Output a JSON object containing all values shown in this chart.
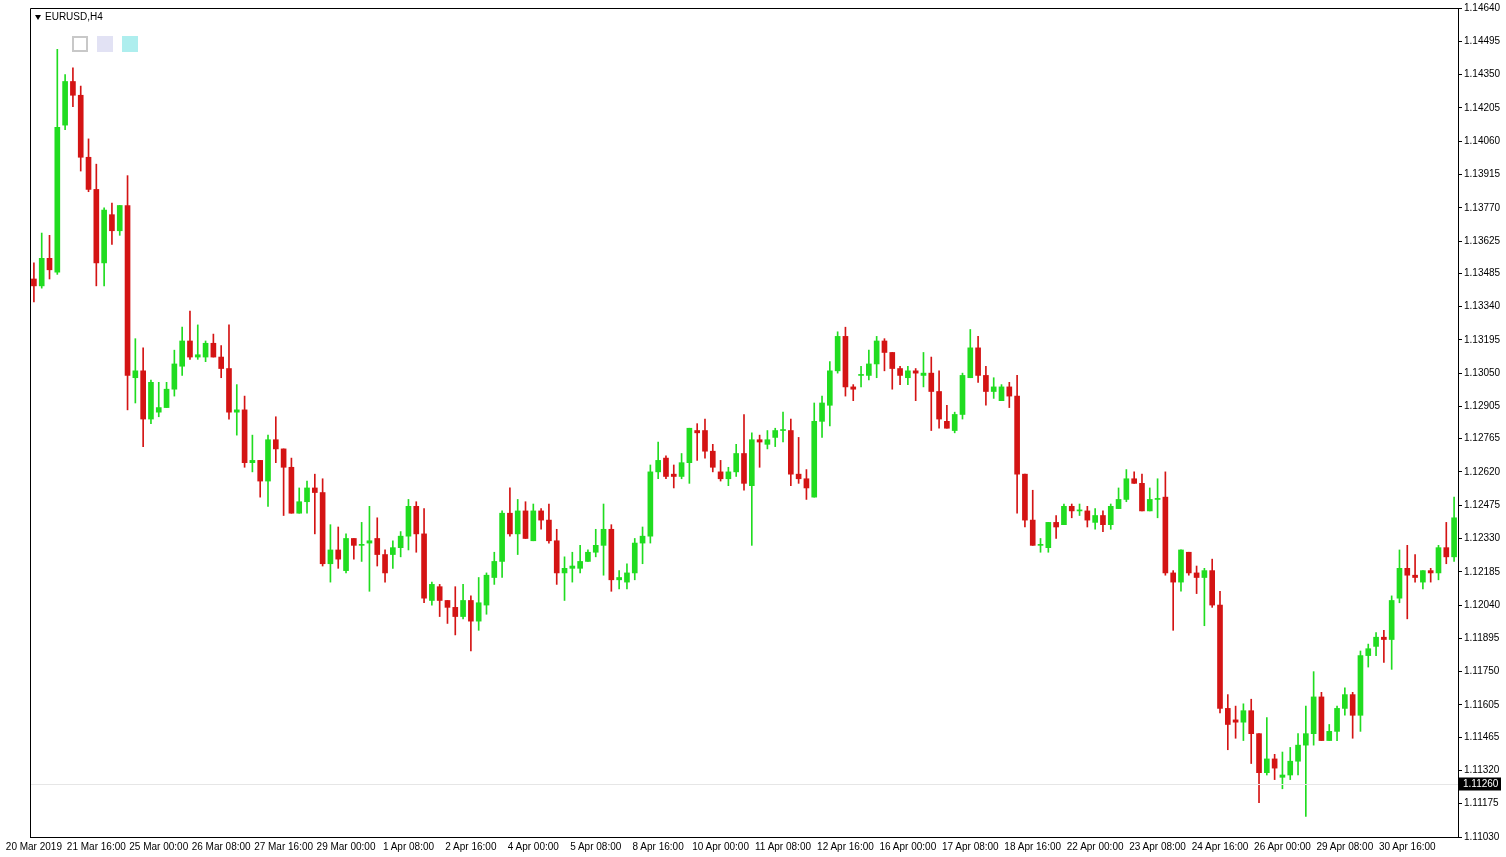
{
  "chart_data": {
    "type": "candlestick",
    "title": "EURUSD,H4",
    "categories": [
      "20 Mar 2019",
      null,
      null,
      null,
      null,
      null,
      null,
      null,
      "21 Mar 16:00",
      null,
      null,
      null,
      null,
      null,
      null,
      null,
      "25 Mar 00:00",
      null,
      null,
      null,
      null,
      null,
      null,
      null,
      "26 Mar 08:00",
      null,
      null,
      null,
      null,
      null,
      null,
      null,
      "27 Mar 16:00",
      null,
      null,
      null,
      null,
      null,
      null,
      null,
      "29 Mar 00:00",
      null,
      null,
      null,
      null,
      null,
      null,
      null,
      "1 Apr 08:00",
      null,
      null,
      null,
      null,
      null,
      null,
      null,
      "2 Apr 16:00",
      null,
      null,
      null,
      null,
      null,
      null,
      null,
      "4 Apr 00:00",
      null,
      null,
      null,
      null,
      null,
      null,
      null,
      "5 Apr 08:00",
      null,
      null,
      null,
      null,
      null,
      null,
      null,
      "8 Apr 16:00",
      null,
      null,
      null,
      null,
      null,
      null,
      null,
      "10 Apr 00:00",
      null,
      null,
      null,
      null,
      null,
      null,
      null,
      "11 Apr 08:00",
      null,
      null,
      null,
      null,
      null,
      null,
      null,
      "12 Apr 16:00",
      null,
      null,
      null,
      null,
      null,
      null,
      null,
      "16 Apr 00:00",
      null,
      null,
      null,
      null,
      null,
      null,
      null,
      "17 Apr 08:00",
      null,
      null,
      null,
      null,
      null,
      null,
      null,
      "18 Apr 16:00",
      null,
      null,
      null,
      null,
      null,
      null,
      null,
      "22 Apr 00:00",
      null,
      null,
      null,
      null,
      null,
      null,
      null,
      "23 Apr 08:00",
      null,
      null,
      null,
      null,
      null,
      null,
      null,
      "24 Apr 16:00",
      null,
      null,
      null,
      null,
      null,
      null,
      null,
      "26 Apr 00:00",
      null,
      null,
      null,
      null,
      null,
      null,
      null,
      "29 Apr 08:00",
      null,
      null,
      null,
      null,
      null,
      null,
      null,
      "30 Apr 16:00",
      null,
      null,
      null,
      null,
      null,
      null
    ],
    "ohlc": [
      [
        1.1346,
        1.1353,
        1.1336,
        1.1343
      ],
      [
        1.1343,
        1.1366,
        1.1342,
        1.1355
      ],
      [
        1.1355,
        1.1365,
        1.1346,
        1.135
      ],
      [
        1.1349,
        1.1446,
        1.1348,
        1.1412
      ],
      [
        1.1413,
        1.1435,
        1.1411,
        1.1432
      ],
      [
        1.1432,
        1.1438,
        1.1421,
        1.1426
      ],
      [
        1.1426,
        1.143,
        1.1393,
        1.1399
      ],
      [
        1.1399,
        1.1407,
        1.1384,
        1.1385
      ],
      [
        1.1385,
        1.1396,
        1.1343,
        1.1353
      ],
      [
        1.1353,
        1.1377,
        1.1343,
        1.1376
      ],
      [
        1.1374,
        1.1379,
        1.1361,
        1.1367
      ],
      [
        1.1367,
        1.1378,
        1.1365,
        1.1378
      ],
      [
        1.1378,
        1.1391,
        1.1289,
        1.1304
      ],
      [
        1.1303,
        1.132,
        1.1292,
        1.1306
      ],
      [
        1.1306,
        1.1316,
        1.1273,
        1.1285
      ],
      [
        1.1285,
        1.1302,
        1.1283,
        1.1301
      ],
      [
        1.1288,
        1.1301,
        1.1286,
        1.129
      ],
      [
        1.129,
        1.1301,
        1.129,
        1.1298
      ],
      [
        1.1298,
        1.1315,
        1.1295,
        1.1309
      ],
      [
        1.1308,
        1.1325,
        1.1304,
        1.1319
      ],
      [
        1.1319,
        1.1332,
        1.1311,
        1.1312
      ],
      [
        1.1312,
        1.1326,
        1.1311,
        1.1313
      ],
      [
        1.1312,
        1.1319,
        1.131,
        1.1318
      ],
      [
        1.1318,
        1.1322,
        1.1312,
        1.1312
      ],
      [
        1.1312,
        1.1317,
        1.1303,
        1.1307
      ],
      [
        1.1307,
        1.1326,
        1.1285,
        1.1288
      ],
      [
        1.1288,
        1.13,
        1.1278,
        1.1289
      ],
      [
        1.1289,
        1.1295,
        1.1264,
        1.1266
      ],
      [
        1.1266,
        1.1278,
        1.1262,
        1.1267
      ],
      [
        1.1267,
        1.1267,
        1.1251,
        1.1258
      ],
      [
        1.1258,
        1.1278,
        1.1247,
        1.1276
      ],
      [
        1.1276,
        1.1286,
        1.1266,
        1.1272
      ],
      [
        1.1272,
        1.1272,
        1.1243,
        1.1264
      ],
      [
        1.1264,
        1.1268,
        1.1244,
        1.1244
      ],
      [
        1.1244,
        1.1255,
        1.1244,
        1.1249
      ],
      [
        1.1249,
        1.1258,
        1.1244,
        1.1255
      ],
      [
        1.1255,
        1.1261,
        1.1235,
        1.1253
      ],
      [
        1.1253,
        1.1259,
        1.1221,
        1.1222
      ],
      [
        1.1222,
        1.1239,
        1.1214,
        1.1228
      ],
      [
        1.1228,
        1.1238,
        1.122,
        1.1224
      ],
      [
        1.1219,
        1.1235,
        1.1218,
        1.1233
      ],
      [
        1.1233,
        1.1233,
        1.1224,
        1.123
      ],
      [
        1.123,
        1.124,
        1.1223,
        1.123
      ],
      [
        1.1231,
        1.1247,
        1.121,
        1.1232
      ],
      [
        1.1233,
        1.1242,
        1.1221,
        1.1226
      ],
      [
        1.1226,
        1.1228,
        1.1214,
        1.1218
      ],
      [
        1.1226,
        1.1232,
        1.122,
        1.1229
      ],
      [
        1.1229,
        1.1236,
        1.1225,
        1.1234
      ],
      [
        1.1234,
        1.125,
        1.1228,
        1.1247
      ],
      [
        1.1247,
        1.1249,
        1.1227,
        1.1235
      ],
      [
        1.1235,
        1.1246,
        1.1205,
        1.1207
      ],
      [
        1.1206,
        1.1214,
        1.1204,
        1.1213
      ],
      [
        1.1212,
        1.1213,
        1.1199,
        1.1206
      ],
      [
        1.1206,
        1.1206,
        1.1196,
        1.1203
      ],
      [
        1.1203,
        1.1212,
        1.1191,
        1.1199
      ],
      [
        1.1199,
        1.1213,
        1.1198,
        1.1206
      ],
      [
        1.1206,
        1.1208,
        1.1184,
        1.1197
      ],
      [
        1.1197,
        1.1216,
        1.1193,
        1.1205
      ],
      [
        1.1204,
        1.1218,
        1.12,
        1.1217
      ],
      [
        1.1216,
        1.1227,
        1.1213,
        1.1223
      ],
      [
        1.1223,
        1.1245,
        1.1216,
        1.1244
      ],
      [
        1.1244,
        1.1255,
        1.1234,
        1.1235
      ],
      [
        1.1235,
        1.125,
        1.1226,
        1.1245
      ],
      [
        1.1245,
        1.1249,
        1.1233,
        1.1233
      ],
      [
        1.1232,
        1.1248,
        1.1232,
        1.1245
      ],
      [
        1.1245,
        1.1246,
        1.1237,
        1.1241
      ],
      [
        1.1241,
        1.1248,
        1.1231,
        1.1232
      ],
      [
        1.1232,
        1.1237,
        1.1213,
        1.1218
      ],
      [
        1.1218,
        1.1225,
        1.1206,
        1.122
      ],
      [
        1.122,
        1.1227,
        1.1214,
        1.1221
      ],
      [
        1.122,
        1.123,
        1.1218,
        1.1223
      ],
      [
        1.1223,
        1.1228,
        1.1223,
        1.1227
      ],
      [
        1.1227,
        1.1237,
        1.1225,
        1.123
      ],
      [
        1.123,
        1.1248,
        1.1217,
        1.1237
      ],
      [
        1.1237,
        1.1239,
        1.121,
        1.1215
      ],
      [
        1.1215,
        1.1219,
        1.1211,
        1.1216
      ],
      [
        1.1214,
        1.1222,
        1.1211,
        1.1218
      ],
      [
        1.1218,
        1.1233,
        1.1215,
        1.1231
      ],
      [
        1.1231,
        1.1238,
        1.1222,
        1.1234
      ],
      [
        1.1234,
        1.1265,
        1.1231,
        1.1262
      ],
      [
        1.1262,
        1.1275,
        1.1259,
        1.1267
      ],
      [
        1.1268,
        1.1269,
        1.1259,
        1.126
      ],
      [
        1.1261,
        1.1265,
        1.1255,
        1.126
      ],
      [
        1.126,
        1.127,
        1.1259,
        1.1266
      ],
      [
        1.1266,
        1.1281,
        1.1257,
        1.1281
      ],
      [
        1.128,
        1.1283,
        1.1267,
        1.1279
      ],
      [
        1.128,
        1.1285,
        1.1268,
        1.1271
      ],
      [
        1.1271,
        1.1274,
        1.1262,
        1.1264
      ],
      [
        1.1262,
        1.1267,
        1.1258,
        1.1259
      ],
      [
        1.1259,
        1.1264,
        1.1256,
        1.1262
      ],
      [
        1.1262,
        1.1274,
        1.126,
        1.127
      ],
      [
        1.127,
        1.1287,
        1.1254,
        1.1257
      ],
      [
        1.1256,
        1.1279,
        1.123,
        1.1276
      ],
      [
        1.1276,
        1.1278,
        1.1264,
        1.1275
      ],
      [
        1.1274,
        1.128,
        1.1272,
        1.1276
      ],
      [
        1.1277,
        1.1281,
        1.1273,
        1.128
      ],
      [
        1.128,
        1.1288,
        1.1275,
        1.128
      ],
      [
        1.128,
        1.1285,
        1.1256,
        1.1261
      ],
      [
        1.1261,
        1.1277,
        1.1257,
        1.1259
      ],
      [
        1.1259,
        1.1263,
        1.125,
        1.1255
      ],
      [
        1.1251,
        1.1292,
        1.1251,
        1.1284
      ],
      [
        1.1284,
        1.1295,
        1.1277,
        1.1292
      ],
      [
        1.1291,
        1.131,
        1.1282,
        1.1306
      ],
      [
        1.1306,
        1.1323,
        1.1305,
        1.1321
      ],
      [
        1.1321,
        1.1325,
        1.1295,
        1.1299
      ],
      [
        1.1299,
        1.13,
        1.1293,
        1.1298
      ],
      [
        1.1304,
        1.1308,
        1.1299,
        1.1304
      ],
      [
        1.1304,
        1.1315,
        1.1302,
        1.1309
      ],
      [
        1.1309,
        1.1321,
        1.1303,
        1.1319
      ],
      [
        1.1319,
        1.132,
        1.1306,
        1.1314
      ],
      [
        1.1314,
        1.1314,
        1.1298,
        1.1307
      ],
      [
        1.1307,
        1.1308,
        1.13,
        1.1304
      ],
      [
        1.1303,
        1.1308,
        1.13,
        1.1306
      ],
      [
        1.1306,
        1.1307,
        1.1293,
        1.1305
      ],
      [
        1.1304,
        1.1314,
        1.1299,
        1.1305
      ],
      [
        1.1305,
        1.1312,
        1.128,
        1.1297
      ],
      [
        1.1297,
        1.1306,
        1.1281,
        1.1285
      ],
      [
        1.1284,
        1.1291,
        1.1281,
        1.1281
      ],
      [
        1.128,
        1.1288,
        1.1279,
        1.1287
      ],
      [
        1.1287,
        1.1305,
        1.1285,
        1.1304
      ],
      [
        1.1303,
        1.1324,
        1.1303,
        1.1316
      ],
      [
        1.1316,
        1.1321,
        1.1301,
        1.1304
      ],
      [
        1.1304,
        1.1308,
        1.1291,
        1.1297
      ],
      [
        1.1297,
        1.1303,
        1.1294,
        1.1299
      ],
      [
        1.1293,
        1.13,
        1.1293,
        1.1299
      ],
      [
        1.1299,
        1.1301,
        1.129,
        1.1295
      ],
      [
        1.1295,
        1.1304,
        1.1244,
        1.1261
      ],
      [
        1.1261,
        1.1261,
        1.1238,
        1.1241
      ],
      [
        1.1241,
        1.1254,
        1.123,
        1.123
      ],
      [
        1.123,
        1.1233,
        1.1227,
        1.123
      ],
      [
        1.1229,
        1.124,
        1.1227,
        1.124
      ],
      [
        1.124,
        1.1243,
        1.1233,
        1.1238
      ],
      [
        1.1239,
        1.1248,
        1.1239,
        1.1247
      ],
      [
        1.1247,
        1.1248,
        1.1242,
        1.1245
      ],
      [
        1.1245,
        1.1248,
        1.1243,
        1.1245
      ],
      [
        1.1245,
        1.1247,
        1.1238,
        1.1241
      ],
      [
        1.124,
        1.1246,
        1.1237,
        1.1243
      ],
      [
        1.1243,
        1.1245,
        1.1236,
        1.1239
      ],
      [
        1.1239,
        1.1248,
        1.1237,
        1.1247
      ],
      [
        1.1246,
        1.1255,
        1.1246,
        1.125
      ],
      [
        1.125,
        1.1263,
        1.1249,
        1.1259
      ],
      [
        1.1259,
        1.1262,
        1.1257,
        1.1257
      ],
      [
        1.1257,
        1.1261,
        1.1245,
        1.1245
      ],
      [
        1.1245,
        1.1255,
        1.1245,
        1.125
      ],
      [
        1.125,
        1.1259,
        1.1242,
        1.125
      ],
      [
        1.1251,
        1.1262,
        1.1217,
        1.1218
      ],
      [
        1.1218,
        1.1219,
        1.1193,
        1.1214
      ],
      [
        1.1214,
        1.1228,
        1.121,
        1.1228
      ],
      [
        1.1227,
        1.1227,
        1.1217,
        1.1218
      ],
      [
        1.1218,
        1.1221,
        1.1209,
        1.1216
      ],
      [
        1.1216,
        1.122,
        1.1195,
        1.1219
      ],
      [
        1.1219,
        1.1224,
        1.1203,
        1.1204
      ],
      [
        1.1204,
        1.121,
        1.1157,
        1.1159
      ],
      [
        1.1159,
        1.1165,
        1.1141,
        1.1152
      ],
      [
        1.1154,
        1.116,
        1.1146,
        1.1153
      ],
      [
        1.1153,
        1.1161,
        1.1145,
        1.1158
      ],
      [
        1.1158,
        1.1163,
        1.1135,
        1.1148
      ],
      [
        1.1148,
        1.1148,
        1.1118,
        1.1131
      ],
      [
        1.1131,
        1.1155,
        1.113,
        1.1137
      ],
      [
        1.1137,
        1.1139,
        1.1128,
        1.1133
      ],
      [
        1.1129,
        1.114,
        1.1124,
        1.113
      ],
      [
        1.113,
        1.1142,
        1.1128,
        1.1136
      ],
      [
        1.1136,
        1.1148,
        1.113,
        1.1143
      ],
      [
        1.1143,
        1.116,
        1.1112,
        1.1148
      ],
      [
        1.1148,
        1.1175,
        1.1143,
        1.1164
      ],
      [
        1.1164,
        1.1166,
        1.1145,
        1.1145
      ],
      [
        1.1145,
        1.1152,
        1.1145,
        1.1149
      ],
      [
        1.1149,
        1.116,
        1.1145,
        1.1159
      ],
      [
        1.1159,
        1.1168,
        1.1156,
        1.1165
      ],
      [
        1.1165,
        1.1166,
        1.1146,
        1.1156
      ],
      [
        1.1156,
        1.1184,
        1.1149,
        1.1182
      ],
      [
        1.1182,
        1.1187,
        1.1177,
        1.1185
      ],
      [
        1.1186,
        1.1192,
        1.1182,
        1.119
      ],
      [
        1.119,
        1.1193,
        1.1179,
        1.1189
      ],
      [
        1.1189,
        1.1208,
        1.1176,
        1.1206
      ],
      [
        1.1207,
        1.1228,
        1.1205,
        1.122
      ],
      [
        1.122,
        1.123,
        1.1198,
        1.1217
      ],
      [
        1.1217,
        1.1226,
        1.1214,
        1.1216
      ],
      [
        1.1214,
        1.1219,
        1.1211,
        1.1219
      ],
      [
        1.1219,
        1.122,
        1.1214,
        1.1218
      ],
      [
        1.1218,
        1.123,
        1.1215,
        1.1229
      ],
      [
        1.1229,
        1.124,
        1.1222,
        1.1225
      ],
      [
        1.1225,
        1.1251,
        1.1223,
        1.1242
      ]
    ],
    "colors": [
      "#d41414",
      "#20dc20",
      "#d41414",
      "#20dc20",
      "#20dc20",
      "#d41414",
      "#d41414",
      "#d41414",
      "#d41414",
      "#20dc20",
      "#d41414",
      "#20dc20",
      "#d41414",
      "#20dc20",
      "#d41414",
      "#20dc20",
      "#20dc20",
      "#20dc20",
      "#20dc20",
      "#20dc20",
      "#d41414",
      "#20dc20",
      "#20dc20",
      "#d41414",
      "#d41414",
      "#d41414",
      "#20dc20",
      "#d41414",
      "#20dc20",
      "#d41414",
      "#20dc20",
      "#d41414",
      "#d41414",
      "#d41414",
      "#20dc20",
      "#20dc20",
      "#d41414",
      "#d41414",
      "#20dc20",
      "#d41414",
      "#20dc20",
      "#d41414",
      "#20dc20",
      "#20dc20",
      "#d41414",
      "#d41414",
      "#20dc20",
      "#20dc20",
      "#20dc20",
      "#d41414",
      "#d41414",
      "#20dc20",
      "#d41414",
      "#d41414",
      "#d41414",
      "#20dc20",
      "#d41414",
      "#20dc20",
      "#20dc20",
      "#20dc20",
      "#20dc20",
      "#d41414",
      "#20dc20",
      "#d41414",
      "#20dc20",
      "#d41414",
      "#d41414",
      "#d41414",
      "#20dc20",
      "#20dc20",
      "#20dc20",
      "#20dc20",
      "#20dc20",
      "#20dc20",
      "#d41414",
      "#20dc20",
      "#20dc20",
      "#20dc20",
      "#20dc20",
      "#20dc20",
      "#20dc20",
      "#d41414",
      "#d41414",
      "#20dc20",
      "#20dc20",
      "#d41414",
      "#d41414",
      "#d41414",
      "#d41414",
      "#20dc20",
      "#20dc20",
      "#d41414",
      "#20dc20",
      "#d41414",
      "#20dc20",
      "#20dc20",
      "#20dc20",
      "#d41414",
      "#d41414",
      "#d41414",
      "#20dc20",
      "#20dc20",
      "#20dc20",
      "#20dc20",
      "#d41414",
      "#d41414",
      "#20dc20",
      "#20dc20",
      "#20dc20",
      "#d41414",
      "#d41414",
      "#d41414",
      "#20dc20",
      "#d41414",
      "#20dc20",
      "#d41414",
      "#d41414",
      "#d41414",
      "#20dc20",
      "#20dc20",
      "#20dc20",
      "#d41414",
      "#d41414",
      "#20dc20",
      "#20dc20",
      "#d41414",
      "#d41414",
      "#d41414",
      "#d41414",
      "#20dc20",
      "#20dc20",
      "#d41414",
      "#20dc20",
      "#d41414",
      "#20dc20",
      "#d41414",
      "#20dc20",
      "#d41414",
      "#20dc20",
      "#20dc20",
      "#20dc20",
      "#d41414",
      "#d41414",
      "#20dc20",
      "#20dc20",
      "#d41414",
      "#d41414",
      "#20dc20",
      "#d41414",
      "#d41414",
      "#20dc20",
      "#d41414",
      "#d41414",
      "#d41414",
      "#d41414",
      "#20dc20",
      "#d41414",
      "#d41414",
      "#20dc20",
      "#d41414",
      "#20dc20",
      "#20dc20",
      "#20dc20",
      "#20dc20",
      "#20dc20",
      "#d41414",
      "#20dc20",
      "#20dc20",
      "#20dc20",
      "#d41414",
      "#20dc20",
      "#20dc20",
      "#20dc20",
      "#d41414",
      "#20dc20",
      "#20dc20",
      "#d41414",
      "#d41414",
      "#20dc20",
      "#d41414",
      "#20dc20",
      "#d41414",
      "#20dc20"
    ],
    "ylim": [
      1.1103,
      1.1464
    ],
    "yticks": [
      {
        "value": 1.1464,
        "label": "1.14640"
      },
      {
        "value": 1.14495,
        "label": "1.14495"
      },
      {
        "value": 1.1435,
        "label": "1.14350"
      },
      {
        "value": 1.14205,
        "label": "1.14205"
      },
      {
        "value": 1.1406,
        "label": "1.14060"
      },
      {
        "value": 1.13915,
        "label": "1.13915"
      },
      {
        "value": 1.1377,
        "label": "1.13770"
      },
      {
        "value": 1.13625,
        "label": "1.13625"
      },
      {
        "value": 1.13485,
        "label": "1.13485"
      },
      {
        "value": 1.1334,
        "label": "1.13340"
      },
      {
        "value": 1.13195,
        "label": "1.13195"
      },
      {
        "value": 1.1305,
        "label": "1.13050"
      },
      {
        "value": 1.12905,
        "label": "1.12905"
      },
      {
        "value": 1.12765,
        "label": "1.12765"
      },
      {
        "value": 1.1262,
        "label": "1.12620"
      },
      {
        "value": 1.12475,
        "label": "1.12475"
      },
      {
        "value": 1.1233,
        "label": "1.12330"
      },
      {
        "value": 1.12185,
        "label": "1.12185"
      },
      {
        "value": 1.1204,
        "label": "1.12040"
      },
      {
        "value": 1.11895,
        "label": "1.11895"
      },
      {
        "value": 1.1175,
        "label": "1.11750"
      },
      {
        "value": 1.11605,
        "label": "1.11605"
      },
      {
        "value": 1.11465,
        "label": "1.11465"
      },
      {
        "value": 1.1132,
        "label": "1.11320"
      },
      {
        "value": 1.11175,
        "label": "1.11175"
      },
      {
        "value": 1.1103,
        "label": "1.11030"
      }
    ],
    "ref_lines": [
      {
        "axis": "y",
        "value": 1.1126,
        "label": "1.11260",
        "color": "#e6e6e6"
      }
    ]
  }
}
